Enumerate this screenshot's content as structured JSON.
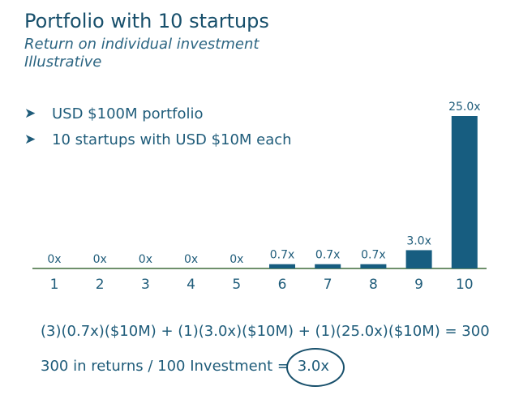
{
  "header": {
    "title": "Portfolio with 10 startups",
    "subtitle": "Return on individual investment",
    "note": "Illustrative"
  },
  "bullets": [
    {
      "icon": "arrowhead-bullet-icon",
      "text": "USD $100M portfolio"
    },
    {
      "icon": "arrowhead-bullet-icon",
      "text": "10 startups with USD $10M each"
    }
  ],
  "chart_data": {
    "type": "bar",
    "categories": [
      "1",
      "2",
      "3",
      "4",
      "5",
      "6",
      "7",
      "8",
      "9",
      "10"
    ],
    "values": [
      0,
      0,
      0,
      0,
      0,
      0.7,
      0.7,
      0.7,
      3.0,
      25.0
    ],
    "data_labels": [
      "0x",
      "0x",
      "0x",
      "0x",
      "0x",
      "0.7x",
      "0.7x",
      "0.7x",
      "3.0x",
      "25.0x"
    ],
    "ylim": [
      0,
      25
    ],
    "grid": false,
    "bar_color": "#175d80",
    "axis_color": "#3f6b3a"
  },
  "formula": "(3)(0.7x)($10M) + (1)(3.0x)($10M) + (1)(25.0x)($10M) = 300",
  "result": {
    "text": "300 in returns / 100 Investment =",
    "value": "3.0x"
  }
}
